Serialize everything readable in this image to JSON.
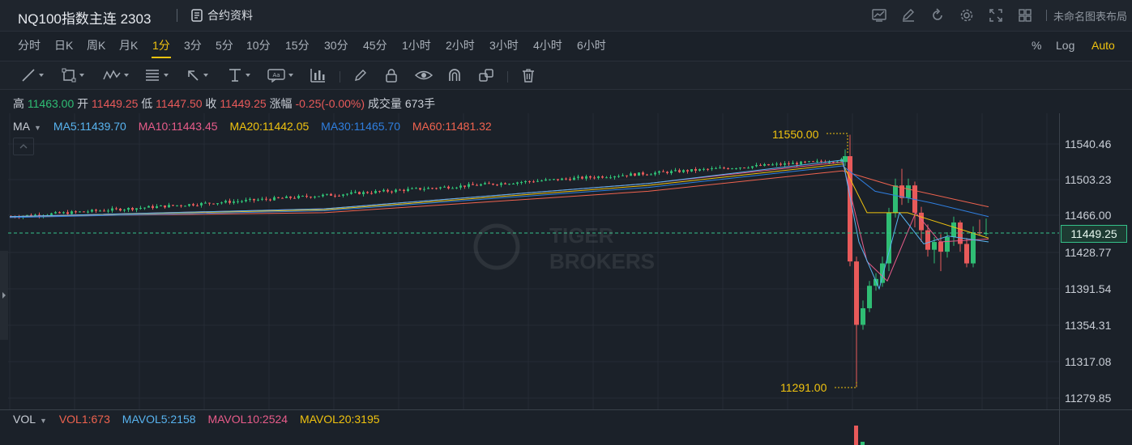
{
  "header": {
    "symbol_title": "NQ100指数主连 2303",
    "contract_label": "合约资料",
    "layout_label": "未命名图表布局",
    "icons": [
      "chart-icon",
      "edit-icon",
      "refresh-icon",
      "gear-icon",
      "fullscreen-icon",
      "grid-icon"
    ]
  },
  "periods": [
    "分时",
    "日K",
    "周K",
    "月K",
    "1分",
    "3分",
    "5分",
    "10分",
    "15分",
    "30分",
    "45分",
    "1小时",
    "2小时",
    "3小时",
    "4小时",
    "6小时"
  ],
  "active_period": "1分",
  "scale_options": [
    "%",
    "Log",
    "Auto"
  ],
  "active_scale": "Auto",
  "drawing_tools": [
    "trend-line-tool",
    "rectangle-tool",
    "pattern-tool",
    "fibonacci-tool",
    "arrow-tool",
    "range-tool",
    "annotation-tool",
    "measure-tool",
    "pencil-tool",
    "lock-tool",
    "visibility-tool",
    "magnet-tool",
    "layers-tool",
    "delete-tool"
  ],
  "ohlc": {
    "high_label": "高",
    "high": "11463.00",
    "open_label": "开",
    "open": "11449.25",
    "low_label": "低",
    "low": "11447.50",
    "close_label": "收",
    "close": "11449.25",
    "change_label": "涨幅",
    "change": "-0.25(-0.00%)",
    "volume_label": "成交量",
    "volume": "673手"
  },
  "ma_legend": {
    "label": "MA",
    "items": [
      {
        "text": "MA5:11439.70",
        "color": "#58b4f0"
      },
      {
        "text": "MA10:11443.45",
        "color": "#e85c8a"
      },
      {
        "text": "MA20:11442.05",
        "color": "#f0c30f"
      },
      {
        "text": "MA30:11465.70",
        "color": "#2f7fe0"
      },
      {
        "text": "MA60:11481.32",
        "color": "#f0634f"
      }
    ]
  },
  "price_axis": [
    "11540.46",
    "11503.23",
    "11466.00",
    "11428.77",
    "11391.54",
    "11354.31",
    "11317.08",
    "11279.85"
  ],
  "last_price": "11449.25",
  "annotations": {
    "high": "11550.00",
    "low": "11291.00"
  },
  "vol_legend": {
    "label": "VOL",
    "items": [
      {
        "text": "VOL1:673",
        "color": "#f0634f"
      },
      {
        "text": "MAVOL5:2158",
        "color": "#58b4f0"
      },
      {
        "text": "MAVOL10:2524",
        "color": "#e85c8a"
      },
      {
        "text": "MAVOL20:3195",
        "color": "#f0c30f"
      }
    ]
  },
  "watermark": {
    "line1": "TIGER",
    "line2": "BROKERS"
  },
  "colors": {
    "up": "#2fbd74",
    "down": "#e85a5a",
    "accent": "#f0c30f",
    "background": "#1b2129"
  }
}
